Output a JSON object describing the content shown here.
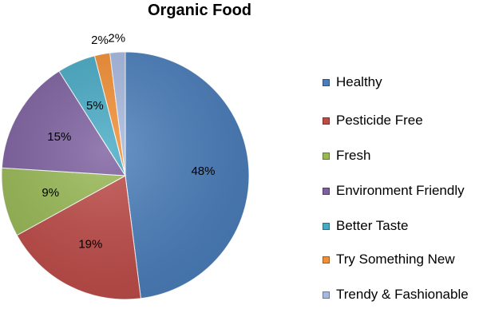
{
  "chart_data": {
    "type": "pie",
    "title": "Organic Food",
    "categories": [
      "Healthy",
      "Pesticide Free",
      "Fresh",
      "Environment Friendly",
      "Better Taste",
      "Try Something New",
      "Trendy & Fashionable"
    ],
    "values": [
      48,
      19,
      9,
      15,
      5,
      2,
      2
    ],
    "labels": [
      "48%",
      "19%",
      "9%",
      "15%",
      "5%",
      "2%",
      "2%"
    ],
    "colors": [
      "#4A7EBB",
      "#BE4B48",
      "#98B954",
      "#7D60A0",
      "#46AAC5",
      "#F38E33",
      "#A7B9E0"
    ],
    "legend_position": "right"
  }
}
